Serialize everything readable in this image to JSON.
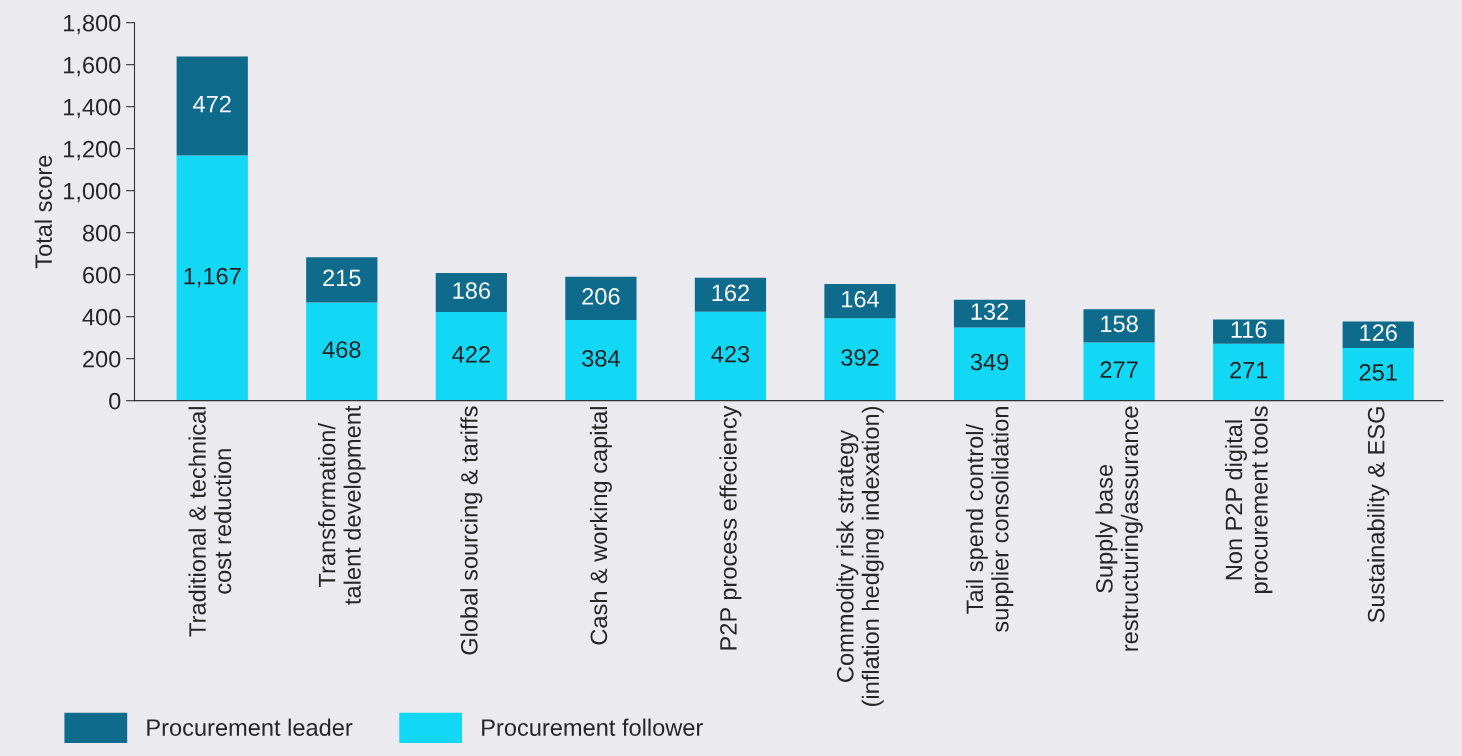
{
  "chart_data": {
    "type": "bar",
    "stacked": true,
    "ylabel": "Total score",
    "categories": [
      "Traditional & technical\ncost reduction",
      "Transformation/\ntalent development",
      "Global sourcing & tariffs",
      "Cash & working capital",
      "P2P process effeciency",
      "Commodity risk strategy\n(inflation hedging indexation)",
      "Tail spend control/\nsupplier consolidation",
      "Supply base\nrestructuring/assurance",
      "Non P2P digital\nprocurement tools",
      "Sustainability & ESG"
    ],
    "series": [
      {
        "name": "Procurement follower",
        "color": "#12d8f5",
        "values": [
          1167,
          468,
          422,
          384,
          423,
          392,
          349,
          277,
          271,
          251
        ],
        "value_labels": [
          "1,167",
          "468",
          "422",
          "384",
          "423",
          "392",
          "349",
          "277",
          "271",
          "251"
        ]
      },
      {
        "name": "Procurement leader",
        "color": "#0e6b8c",
        "values": [
          472,
          215,
          186,
          206,
          162,
          164,
          132,
          158,
          116,
          126
        ],
        "value_labels": [
          "472",
          "215",
          "186",
          "206",
          "162",
          "164",
          "132",
          "158",
          "116",
          "126"
        ]
      }
    ],
    "ylim": [
      0,
      1800
    ],
    "yticks": [
      0,
      200,
      400,
      600,
      800,
      {
        "value": 1000,
        "label": "1,000"
      },
      {
        "value": 1200,
        "label": "1,200"
      },
      {
        "value": 1400,
        "label": "1,400"
      },
      {
        "value": 1600,
        "label": "1,600"
      },
      {
        "value": 1800,
        "label": "1,800"
      }
    ],
    "grid": false,
    "legend": "bottom left"
  }
}
